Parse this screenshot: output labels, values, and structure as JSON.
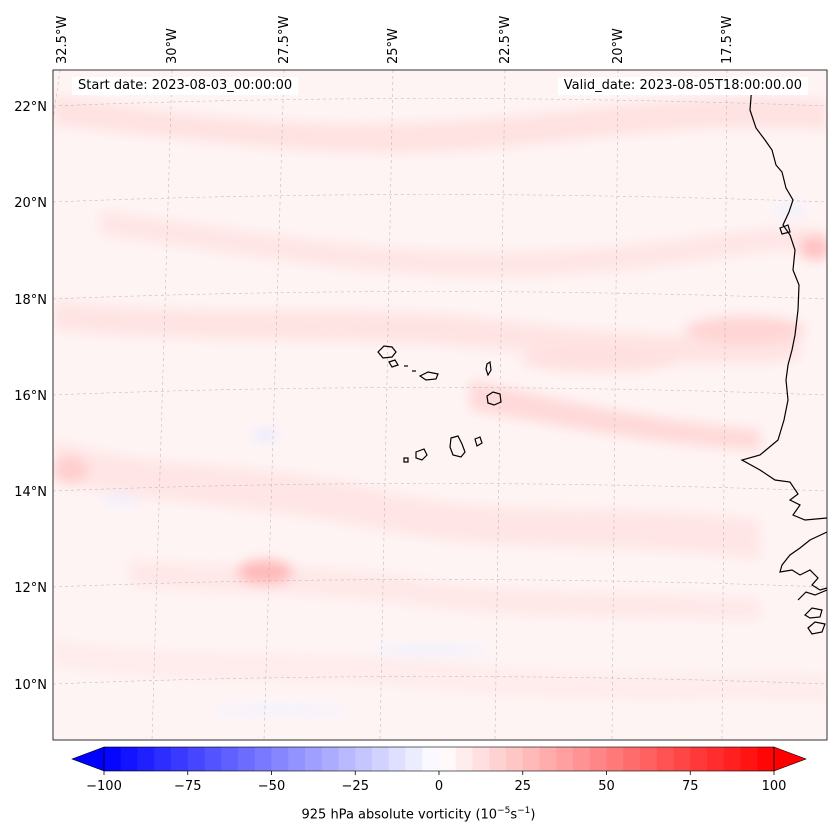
{
  "map": {
    "title_left_prefix": "Start date: ",
    "start_date": "2023-08-03_00:00:00",
    "title_right_prefix": "Valid_date: ",
    "valid_date": "2023-08-05T18:00:00.00",
    "longitude_labels": [
      "32.5°W",
      "30°W",
      "27.5°W",
      "25°W",
      "22.5°W",
      "20°W",
      "17.5°W"
    ],
    "latitude_labels": [
      "22°N",
      "20°N",
      "18°N",
      "16°N",
      "14°N",
      "12°N",
      "10°N"
    ],
    "extent": {
      "lon_min": -32.6,
      "lon_max": -15.0,
      "lat_min": 8.8,
      "lat_max": 22.8
    }
  },
  "colorbar": {
    "min": -100,
    "max": 100,
    "tick_labels": [
      "−100",
      "−75",
      "−50",
      "−25",
      "0",
      "25",
      "50",
      "75",
      "100"
    ],
    "tick_values": [
      -100,
      -75,
      -50,
      -25,
      0,
      25,
      50,
      75,
      100
    ],
    "label_main": "925 hPa absolute vorticity (10",
    "label_exp1": "−5",
    "label_mid": "s",
    "label_exp2": "−1",
    "label_end": ")",
    "neg_color": "#0000ff",
    "pos_color": "#ff0000"
  }
}
